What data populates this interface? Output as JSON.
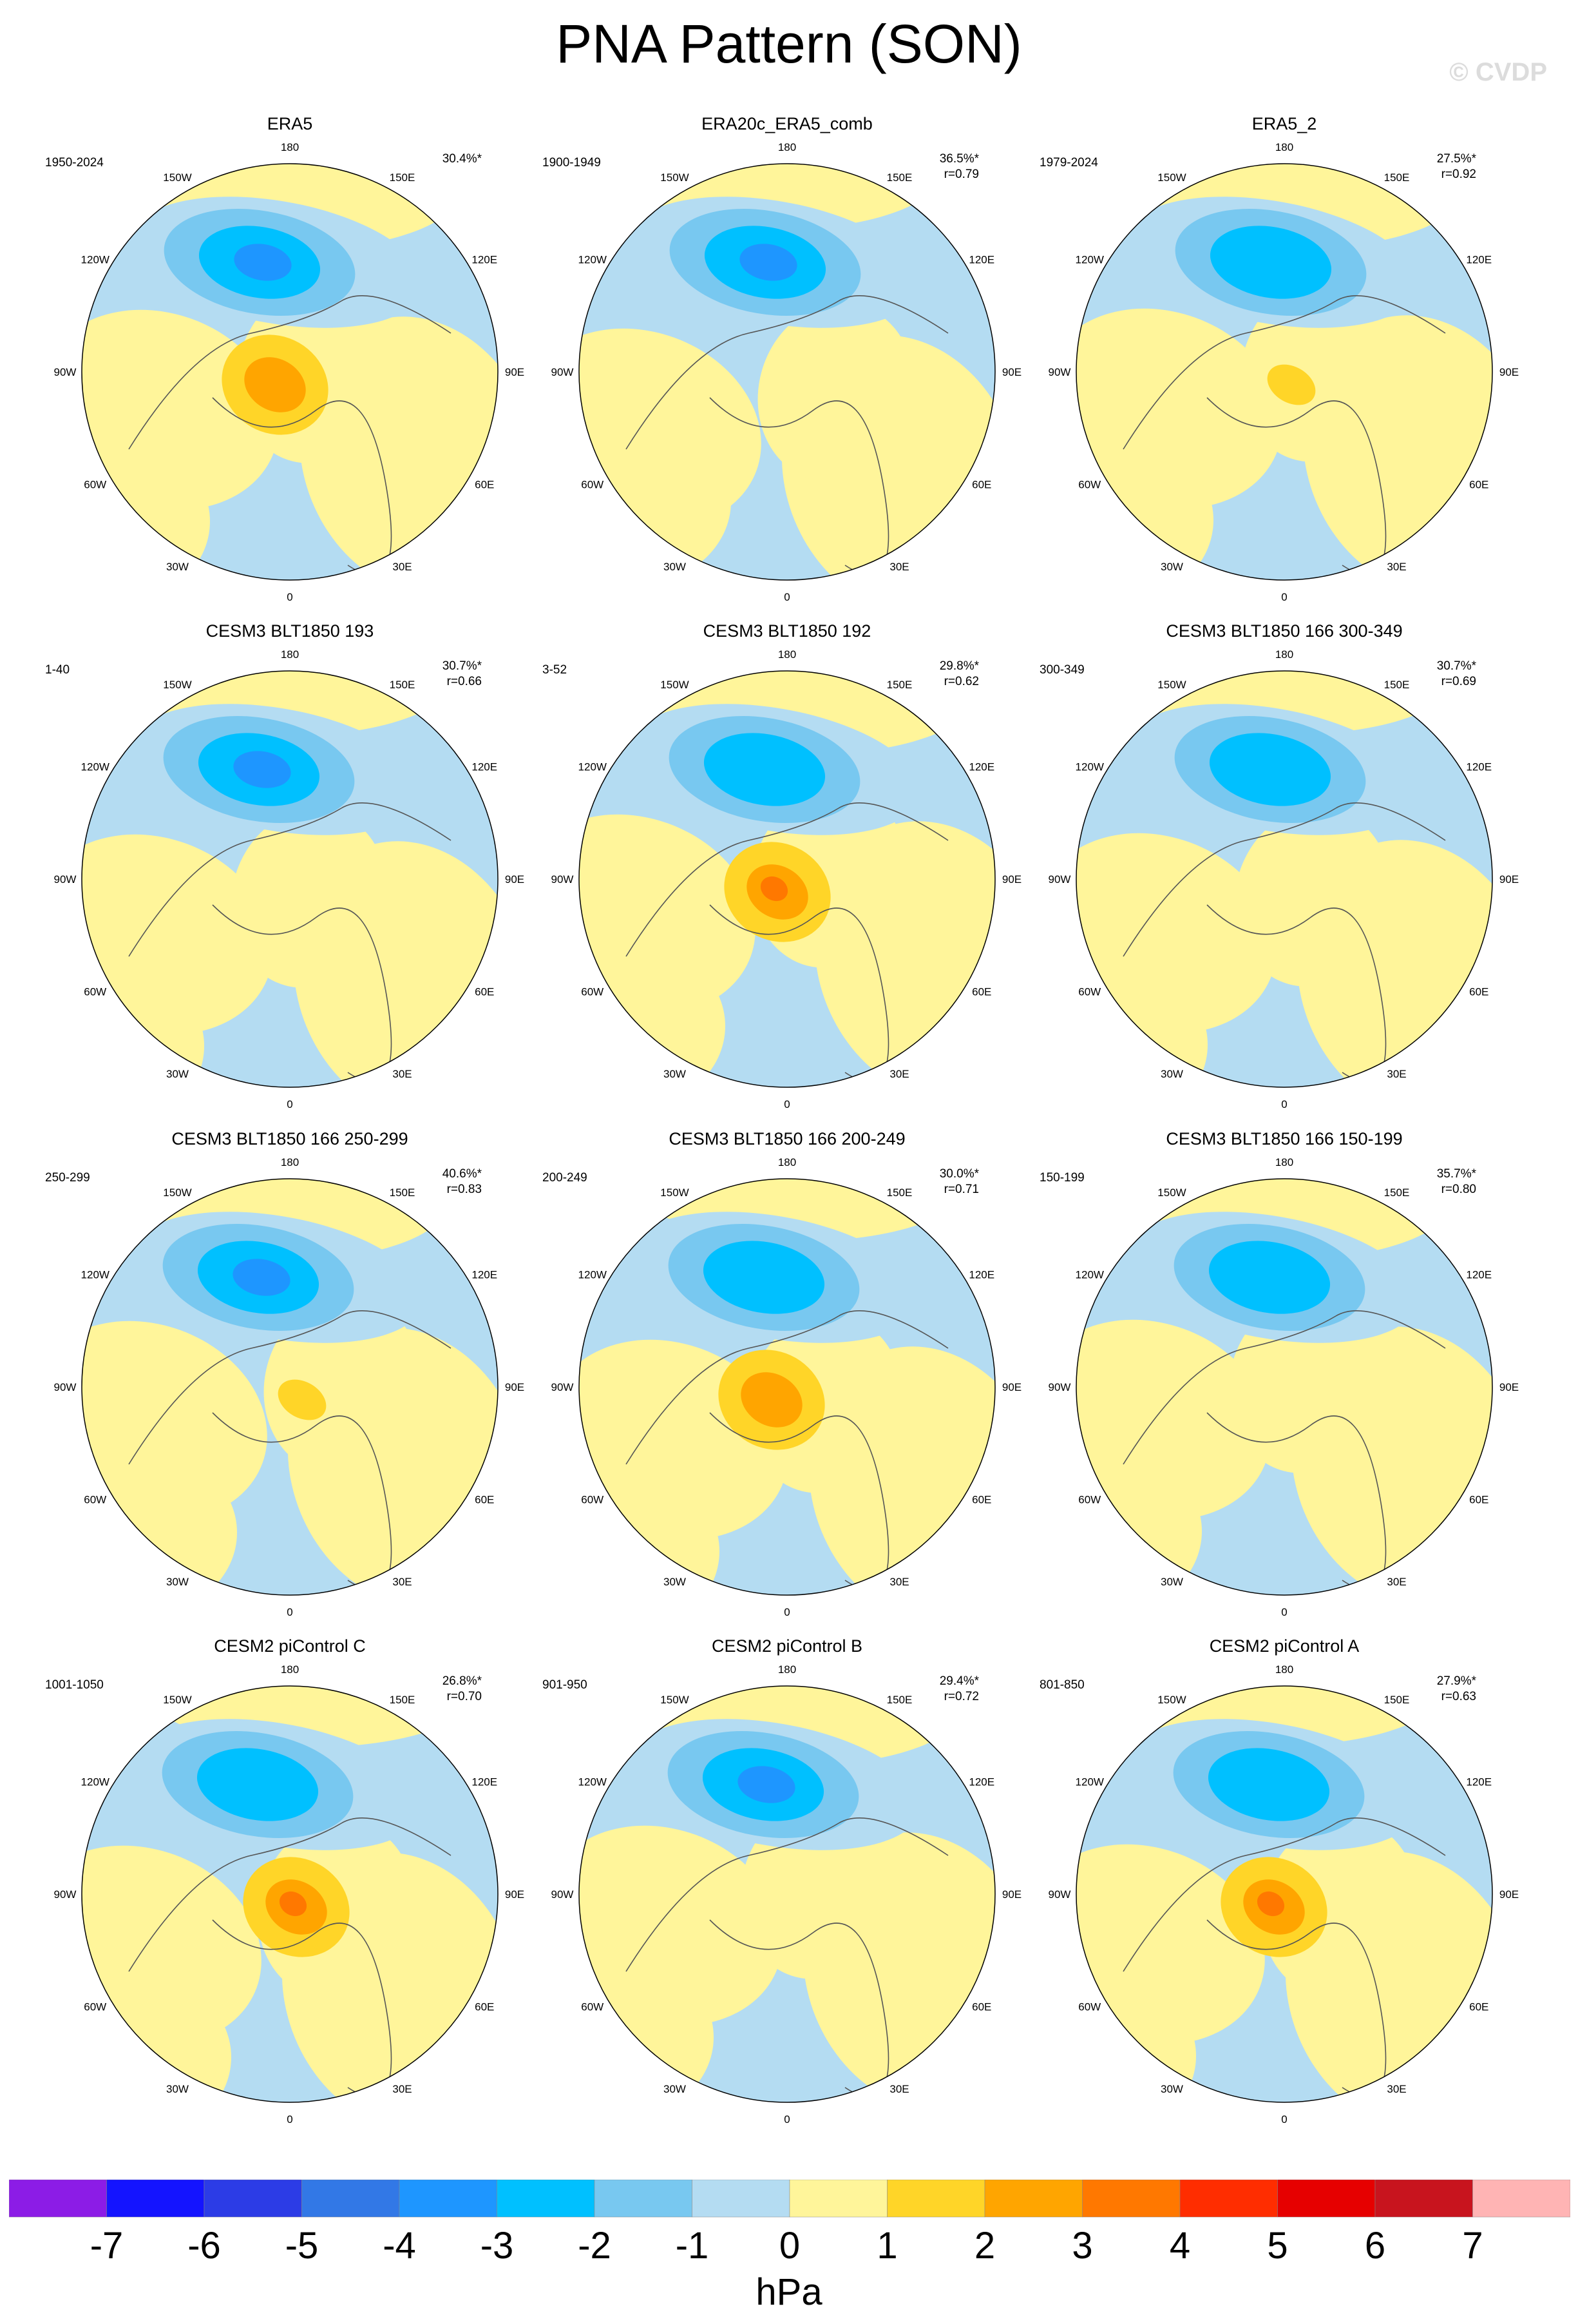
{
  "title": "PNA Pattern (SON)",
  "watermark": "© CVDP",
  "longitude_labels": [
    "180",
    "150E",
    "120E",
    "90E",
    "60E",
    "30E",
    "0",
    "30W",
    "60W",
    "90W",
    "120W",
    "150W"
  ],
  "panels": [
    {
      "title": "ERA5",
      "period": "1950-2024",
      "pct": "30.4%*",
      "r": "",
      "low": "strong",
      "high": "medium",
      "pattern": 1
    },
    {
      "title": "ERA20c_ERA5_comb",
      "period": "1900-1949",
      "pct": "36.5%*",
      "r": "r=0.79",
      "low": "strong",
      "high": "none",
      "pattern": 2
    },
    {
      "title": "ERA5_2",
      "period": "1979-2024",
      "pct": "27.5%*",
      "r": "r=0.92",
      "low": "medium",
      "high": "weak",
      "pattern": 3
    },
    {
      "title": "CESM3 BLT1850 193",
      "period": "1-40",
      "pct": "30.7%*",
      "r": "r=0.66",
      "low": "strong",
      "high": "none",
      "pattern": 4
    },
    {
      "title": "CESM3 BLT1850 192",
      "period": "3-52",
      "pct": "29.8%*",
      "r": "r=0.62",
      "low": "medium",
      "high": "strong",
      "pattern": 5
    },
    {
      "title": "CESM3 BLT1850 166 300-349",
      "period": "300-349",
      "pct": "30.7%*",
      "r": "r=0.69",
      "low": "medium",
      "high": "none",
      "pattern": 6
    },
    {
      "title": "CESM3 BLT1850 166 250-299",
      "period": "250-299",
      "pct": "40.6%*",
      "r": "r=0.83",
      "low": "strong",
      "high": "weak",
      "pattern": 7
    },
    {
      "title": "CESM3 BLT1850 166 200-249",
      "period": "200-249",
      "pct": "30.0%*",
      "r": "r=0.71",
      "low": "medium",
      "high": "medium",
      "pattern": 8
    },
    {
      "title": "CESM3 BLT1850 166 150-199",
      "period": "150-199",
      "pct": "35.7%*",
      "r": "r=0.80",
      "low": "medium",
      "high": "none",
      "pattern": 9
    },
    {
      "title": "CESM2 piControl C",
      "period": "1001-1050",
      "pct": "26.8%*",
      "r": "r=0.70",
      "low": "medium",
      "high": "strong",
      "pattern": 10
    },
    {
      "title": "CESM2 piControl B",
      "period": "901-950",
      "pct": "29.4%*",
      "r": "r=0.72",
      "low": "strong",
      "high": "none",
      "pattern": 11
    },
    {
      "title": "CESM2 piControl A",
      "period": "801-850",
      "pct": "27.9%*",
      "r": "r=0.63",
      "low": "medium",
      "high": "strong",
      "pattern": 12
    }
  ],
  "colorbar": {
    "colors": [
      "#8c1ce6",
      "#1414ff",
      "#2c3ce6",
      "#3278e6",
      "#1e96ff",
      "#00c0ff",
      "#78c8f0",
      "#b4dcf2",
      "#fff59a",
      "#ffd528",
      "#ffa500",
      "#ff7800",
      "#ff2d00",
      "#e60000",
      "#c8141e",
      "#ffb4b4"
    ],
    "labels": [
      "-7",
      "-6",
      "-5",
      "-4",
      "-3",
      "-2",
      "-1",
      "0",
      "1",
      "2",
      "3",
      "4",
      "5",
      "6",
      "7"
    ],
    "unit": "hPa"
  }
}
